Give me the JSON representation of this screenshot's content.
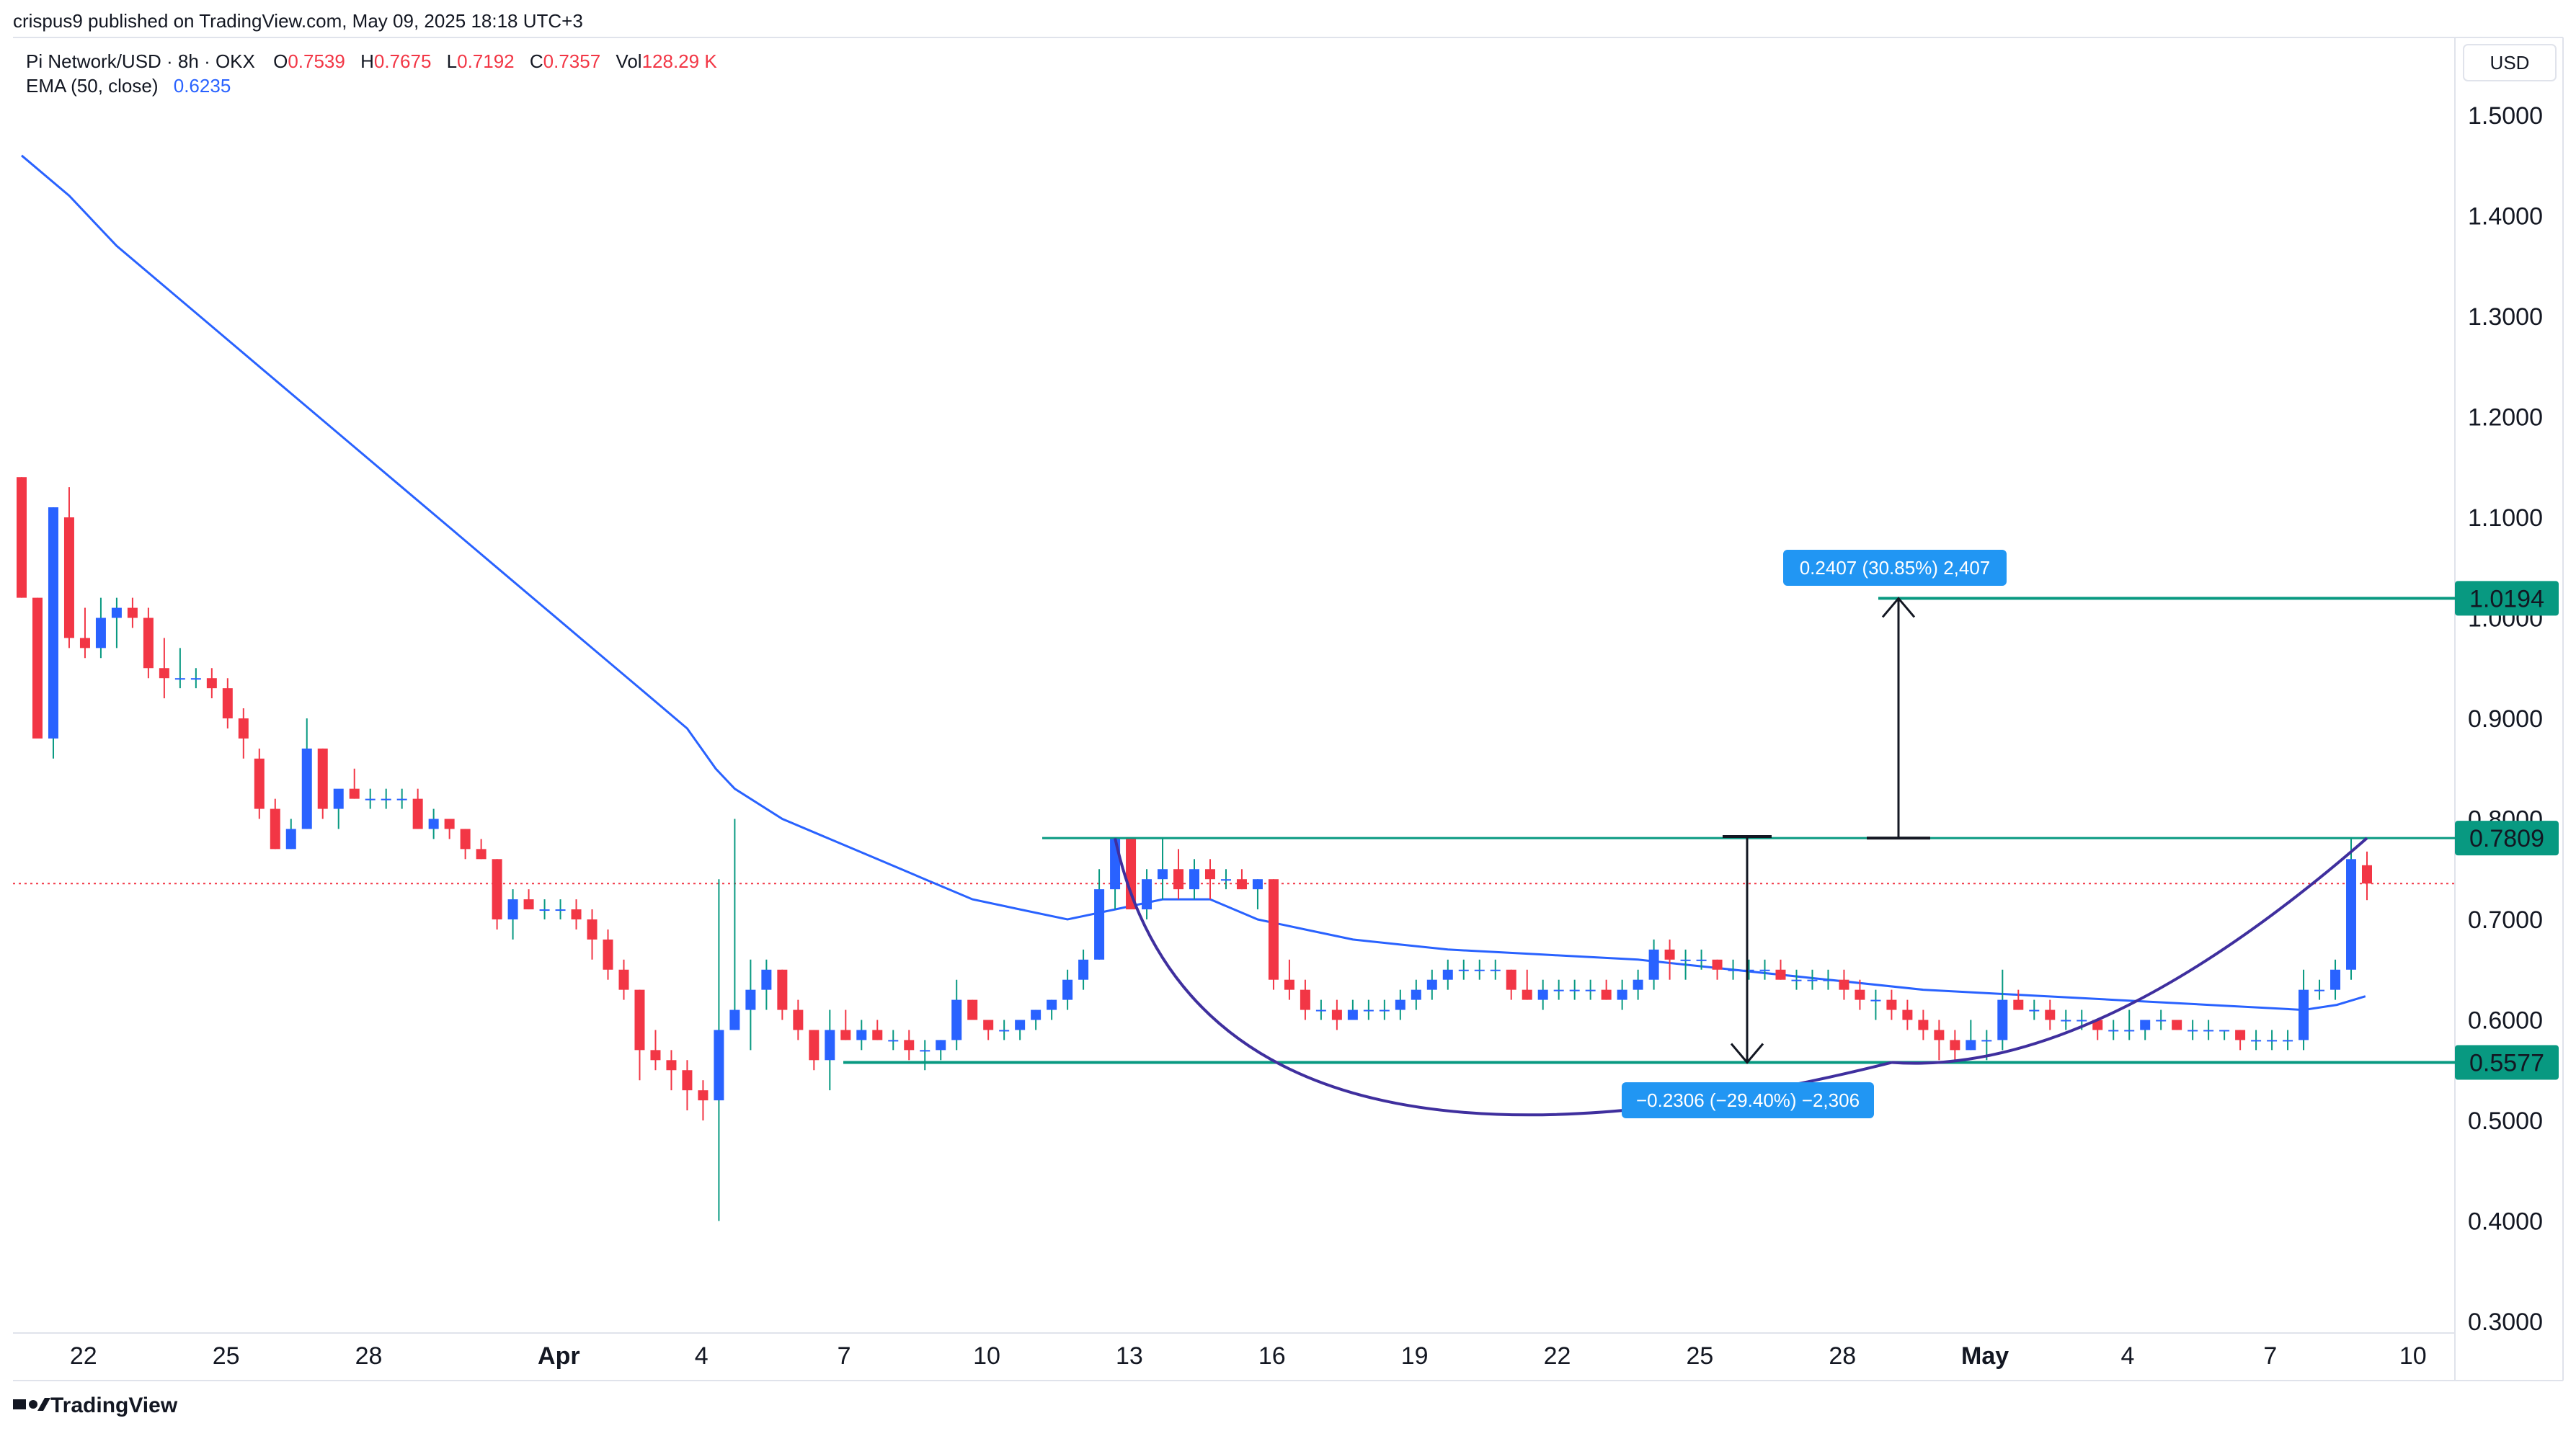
{
  "header": {
    "published": "crispus9 published on TradingView.com, May 09, 2025 18:18 UTC+3"
  },
  "legend": {
    "symbol": "Pi Network/USD · 8h · OKX",
    "o_label": "O",
    "o_value": "0.7539",
    "h_label": "H",
    "h_value": "0.7675",
    "l_label": "L",
    "l_value": "0.7192",
    "c_label": "C",
    "c_value": "0.7357",
    "vol_label": "Vol",
    "vol_value": "128.29 K",
    "ema_label": "EMA (50, close)",
    "ema_value": "0.6235"
  },
  "currency_button": "USD",
  "branding": "TradingView",
  "colors": {
    "up": "#2962ff",
    "down": "#f23645",
    "ema": "#2962ff",
    "level": "#089981",
    "curve": "#3f2f9e",
    "measure_bg": "#2196f3",
    "price_line": "#f23645"
  },
  "chart_data": {
    "type": "candlestick",
    "title": "Pi Network/USD · 8h · OKX",
    "ylim": [
      0.3,
      1.55
    ],
    "y_ticks": [
      "1.5000",
      "1.4000",
      "1.3000",
      "1.2000",
      "1.1000",
      "1.0000",
      "0.9000",
      "0.8000",
      "0.7000",
      "0.6000",
      "0.5000",
      "0.4000",
      "0.3000"
    ],
    "x_ticks": [
      {
        "t": 1.3,
        "label": "22",
        "bold": false
      },
      {
        "t": 4.3,
        "label": "25",
        "bold": false
      },
      {
        "t": 7.3,
        "label": "28",
        "bold": false
      },
      {
        "t": 11.3,
        "label": "Apr",
        "bold": true
      },
      {
        "t": 14.3,
        "label": "4",
        "bold": false
      },
      {
        "t": 17.3,
        "label": "7",
        "bold": false
      },
      {
        "t": 20.3,
        "label": "10",
        "bold": false
      },
      {
        "t": 23.3,
        "label": "13",
        "bold": false
      },
      {
        "t": 26.3,
        "label": "16",
        "bold": false
      },
      {
        "t": 29.3,
        "label": "19",
        "bold": false
      },
      {
        "t": 32.3,
        "label": "22",
        "bold": false
      },
      {
        "t": 35.3,
        "label": "25",
        "bold": false
      },
      {
        "t": 38.3,
        "label": "28",
        "bold": false
      },
      {
        "t": 41.3,
        "label": "May",
        "bold": true
      },
      {
        "t": 44.3,
        "label": "4",
        "bold": false
      },
      {
        "t": 47.3,
        "label": "7",
        "bold": false
      },
      {
        "t": 50.3,
        "label": "10",
        "bold": false
      }
    ],
    "candles": [
      [
        1.14,
        1.14,
        1.02,
        1.02
      ],
      [
        1.02,
        1.02,
        0.89,
        0.88
      ],
      [
        0.88,
        1.11,
        0.86,
        1.11
      ],
      [
        1.1,
        1.13,
        0.97,
        0.98
      ],
      [
        0.98,
        1.01,
        0.96,
        0.97
      ],
      [
        0.97,
        1.02,
        0.96,
        1.0
      ],
      [
        1.0,
        1.02,
        0.97,
        1.01
      ],
      [
        1.01,
        1.02,
        0.99,
        1.0
      ],
      [
        1.0,
        1.01,
        0.94,
        0.95
      ],
      [
        0.95,
        0.98,
        0.92,
        0.94
      ],
      [
        0.94,
        0.97,
        0.93,
        0.94
      ],
      [
        0.94,
        0.95,
        0.93,
        0.94
      ],
      [
        0.94,
        0.95,
        0.92,
        0.93
      ],
      [
        0.93,
        0.94,
        0.89,
        0.9
      ],
      [
        0.9,
        0.91,
        0.86,
        0.88
      ],
      [
        0.86,
        0.87,
        0.8,
        0.81
      ],
      [
        0.81,
        0.82,
        0.77,
        0.77
      ],
      [
        0.77,
        0.8,
        0.77,
        0.79
      ],
      [
        0.79,
        0.9,
        0.79,
        0.87
      ],
      [
        0.87,
        0.87,
        0.8,
        0.81
      ],
      [
        0.81,
        0.82,
        0.79,
        0.83
      ],
      [
        0.83,
        0.85,
        0.82,
        0.82
      ],
      [
        0.82,
        0.83,
        0.81,
        0.82
      ],
      [
        0.82,
        0.83,
        0.81,
        0.82
      ],
      [
        0.82,
        0.83,
        0.81,
        0.82
      ],
      [
        0.82,
        0.83,
        0.79,
        0.79
      ],
      [
        0.79,
        0.81,
        0.78,
        0.8
      ],
      [
        0.8,
        0.8,
        0.78,
        0.79
      ],
      [
        0.79,
        0.79,
        0.76,
        0.77
      ],
      [
        0.77,
        0.78,
        0.76,
        0.76
      ],
      [
        0.76,
        0.76,
        0.69,
        0.7
      ],
      [
        0.7,
        0.73,
        0.68,
        0.72
      ],
      [
        0.72,
        0.73,
        0.71,
        0.71
      ],
      [
        0.71,
        0.72,
        0.7,
        0.71
      ],
      [
        0.71,
        0.72,
        0.7,
        0.71
      ],
      [
        0.71,
        0.72,
        0.69,
        0.7
      ],
      [
        0.7,
        0.71,
        0.66,
        0.68
      ],
      [
        0.68,
        0.69,
        0.64,
        0.65
      ],
      [
        0.65,
        0.66,
        0.62,
        0.63
      ],
      [
        0.63,
        0.63,
        0.54,
        0.57
      ],
      [
        0.57,
        0.59,
        0.55,
        0.56
      ],
      [
        0.56,
        0.57,
        0.53,
        0.55
      ],
      [
        0.55,
        0.56,
        0.51,
        0.53
      ],
      [
        0.53,
        0.54,
        0.5,
        0.52
      ],
      [
        0.52,
        0.74,
        0.4,
        0.59
      ],
      [
        0.59,
        0.8,
        0.59,
        0.61
      ],
      [
        0.61,
        0.66,
        0.57,
        0.63
      ],
      [
        0.63,
        0.66,
        0.61,
        0.65
      ],
      [
        0.65,
        0.65,
        0.6,
        0.61
      ],
      [
        0.61,
        0.62,
        0.58,
        0.59
      ],
      [
        0.59,
        0.59,
        0.55,
        0.56
      ],
      [
        0.56,
        0.61,
        0.53,
        0.59
      ],
      [
        0.59,
        0.61,
        0.58,
        0.58
      ],
      [
        0.58,
        0.6,
        0.57,
        0.59
      ],
      [
        0.59,
        0.6,
        0.58,
        0.58
      ],
      [
        0.58,
        0.59,
        0.57,
        0.58
      ],
      [
        0.58,
        0.59,
        0.56,
        0.57
      ],
      [
        0.57,
        0.58,
        0.55,
        0.57
      ],
      [
        0.57,
        0.58,
        0.56,
        0.58
      ],
      [
        0.58,
        0.64,
        0.57,
        0.62
      ],
      [
        0.62,
        0.62,
        0.6,
        0.6
      ],
      [
        0.6,
        0.6,
        0.58,
        0.59
      ],
      [
        0.59,
        0.6,
        0.58,
        0.59
      ],
      [
        0.59,
        0.6,
        0.58,
        0.6
      ],
      [
        0.6,
        0.61,
        0.59,
        0.61
      ],
      [
        0.61,
        0.62,
        0.6,
        0.62
      ],
      [
        0.62,
        0.65,
        0.61,
        0.64
      ],
      [
        0.64,
        0.67,
        0.63,
        0.66
      ],
      [
        0.66,
        0.75,
        0.66,
        0.73
      ],
      [
        0.73,
        0.78,
        0.71,
        0.78
      ],
      [
        0.78,
        0.78,
        0.71,
        0.71
      ],
      [
        0.71,
        0.75,
        0.7,
        0.74
      ],
      [
        0.74,
        0.78,
        0.72,
        0.75
      ],
      [
        0.75,
        0.77,
        0.72,
        0.73
      ],
      [
        0.73,
        0.76,
        0.72,
        0.75
      ],
      [
        0.75,
        0.76,
        0.72,
        0.74
      ],
      [
        0.74,
        0.75,
        0.73,
        0.74
      ],
      [
        0.74,
        0.75,
        0.73,
        0.73
      ],
      [
        0.73,
        0.74,
        0.71,
        0.74
      ],
      [
        0.74,
        0.74,
        0.63,
        0.64
      ],
      [
        0.64,
        0.66,
        0.62,
        0.63
      ],
      [
        0.63,
        0.64,
        0.6,
        0.61
      ],
      [
        0.61,
        0.62,
        0.6,
        0.61
      ],
      [
        0.61,
        0.62,
        0.59,
        0.6
      ],
      [
        0.6,
        0.62,
        0.6,
        0.61
      ],
      [
        0.61,
        0.62,
        0.6,
        0.61
      ],
      [
        0.61,
        0.62,
        0.6,
        0.61
      ],
      [
        0.61,
        0.63,
        0.6,
        0.62
      ],
      [
        0.62,
        0.64,
        0.61,
        0.63
      ],
      [
        0.63,
        0.65,
        0.62,
        0.64
      ],
      [
        0.64,
        0.66,
        0.63,
        0.65
      ],
      [
        0.65,
        0.66,
        0.64,
        0.65
      ],
      [
        0.65,
        0.66,
        0.64,
        0.65
      ],
      [
        0.65,
        0.66,
        0.64,
        0.65
      ],
      [
        0.65,
        0.65,
        0.62,
        0.63
      ],
      [
        0.63,
        0.65,
        0.62,
        0.62
      ],
      [
        0.62,
        0.64,
        0.61,
        0.63
      ],
      [
        0.63,
        0.64,
        0.62,
        0.63
      ],
      [
        0.63,
        0.64,
        0.62,
        0.63
      ],
      [
        0.63,
        0.64,
        0.62,
        0.63
      ],
      [
        0.63,
        0.64,
        0.62,
        0.62
      ],
      [
        0.62,
        0.64,
        0.61,
        0.63
      ],
      [
        0.63,
        0.65,
        0.62,
        0.64
      ],
      [
        0.64,
        0.68,
        0.63,
        0.67
      ],
      [
        0.67,
        0.68,
        0.64,
        0.66
      ],
      [
        0.66,
        0.67,
        0.64,
        0.66
      ],
      [
        0.66,
        0.67,
        0.65,
        0.66
      ],
      [
        0.66,
        0.66,
        0.64,
        0.65
      ],
      [
        0.65,
        0.66,
        0.64,
        0.65
      ],
      [
        0.65,
        0.66,
        0.64,
        0.65
      ],
      [
        0.65,
        0.66,
        0.64,
        0.65
      ],
      [
        0.65,
        0.66,
        0.64,
        0.64
      ],
      [
        0.64,
        0.65,
        0.63,
        0.64
      ],
      [
        0.64,
        0.65,
        0.63,
        0.64
      ],
      [
        0.64,
        0.65,
        0.63,
        0.64
      ],
      [
        0.64,
        0.65,
        0.62,
        0.63
      ],
      [
        0.63,
        0.64,
        0.61,
        0.62
      ],
      [
        0.62,
        0.63,
        0.6,
        0.62
      ],
      [
        0.62,
        0.63,
        0.6,
        0.61
      ],
      [
        0.61,
        0.62,
        0.59,
        0.6
      ],
      [
        0.6,
        0.61,
        0.58,
        0.59
      ],
      [
        0.59,
        0.6,
        0.56,
        0.58
      ],
      [
        0.58,
        0.59,
        0.56,
        0.57
      ],
      [
        0.57,
        0.6,
        0.57,
        0.58
      ],
      [
        0.58,
        0.59,
        0.56,
        0.58
      ],
      [
        0.58,
        0.65,
        0.57,
        0.62
      ],
      [
        0.62,
        0.63,
        0.61,
        0.61
      ],
      [
        0.61,
        0.62,
        0.6,
        0.61
      ],
      [
        0.61,
        0.62,
        0.59,
        0.6
      ],
      [
        0.6,
        0.61,
        0.59,
        0.6
      ],
      [
        0.6,
        0.61,
        0.59,
        0.6
      ],
      [
        0.6,
        0.6,
        0.58,
        0.59
      ],
      [
        0.59,
        0.6,
        0.58,
        0.59
      ],
      [
        0.59,
        0.61,
        0.58,
        0.59
      ],
      [
        0.59,
        0.6,
        0.58,
        0.6
      ],
      [
        0.6,
        0.61,
        0.59,
        0.6
      ],
      [
        0.6,
        0.6,
        0.59,
        0.59
      ],
      [
        0.59,
        0.6,
        0.58,
        0.59
      ],
      [
        0.59,
        0.6,
        0.58,
        0.59
      ],
      [
        0.59,
        0.59,
        0.58,
        0.59
      ],
      [
        0.59,
        0.59,
        0.57,
        0.58
      ],
      [
        0.58,
        0.59,
        0.57,
        0.58
      ],
      [
        0.58,
        0.59,
        0.57,
        0.58
      ],
      [
        0.58,
        0.59,
        0.57,
        0.58
      ],
      [
        0.58,
        0.65,
        0.57,
        0.63
      ],
      [
        0.63,
        0.64,
        0.62,
        0.63
      ],
      [
        0.63,
        0.66,
        0.62,
        0.65
      ],
      [
        0.65,
        0.78,
        0.64,
        0.76
      ],
      [
        0.7539,
        0.7675,
        0.7192,
        0.7357
      ]
    ],
    "ema": [
      [
        0.0,
        1.46
      ],
      [
        1.0,
        1.42
      ],
      [
        2.0,
        1.37
      ],
      [
        3.0,
        1.33
      ],
      [
        4.0,
        1.29
      ],
      [
        5.0,
        1.25
      ],
      [
        6.0,
        1.21
      ],
      [
        7.0,
        1.17
      ],
      [
        8.0,
        1.13
      ],
      [
        9.0,
        1.09
      ],
      [
        10.0,
        1.05
      ],
      [
        11.0,
        1.01
      ],
      [
        12.0,
        0.97
      ],
      [
        13.0,
        0.93
      ],
      [
        14.0,
        0.89
      ],
      [
        14.6,
        0.85
      ],
      [
        15.0,
        0.83
      ],
      [
        16.0,
        0.8
      ],
      [
        17.0,
        0.78
      ],
      [
        18.0,
        0.76
      ],
      [
        19.0,
        0.74
      ],
      [
        20.0,
        0.72
      ],
      [
        21.0,
        0.71
      ],
      [
        22.0,
        0.7
      ],
      [
        23.0,
        0.71
      ],
      [
        24.0,
        0.72
      ],
      [
        25.0,
        0.72
      ],
      [
        26.0,
        0.7
      ],
      [
        27.0,
        0.69
      ],
      [
        28.0,
        0.68
      ],
      [
        29.0,
        0.675
      ],
      [
        30.0,
        0.67
      ],
      [
        32.0,
        0.665
      ],
      [
        34.0,
        0.66
      ],
      [
        36.0,
        0.65
      ],
      [
        38.0,
        0.64
      ],
      [
        40.0,
        0.63
      ],
      [
        42.0,
        0.625
      ],
      [
        44.0,
        0.62
      ],
      [
        46.0,
        0.615
      ],
      [
        48.0,
        0.61
      ],
      [
        48.7,
        0.615
      ],
      [
        49.3,
        0.6235
      ]
    ],
    "resistance": 0.7809,
    "support": 0.5577,
    "target": 1.0194,
    "last_price": 0.7357,
    "measure_up": "0.2407 (30.85%) 2,407",
    "measure_down": "−0.2306 (−29.40%) −2,306",
    "level_labels": {
      "target": "1.0194",
      "resistance": "0.7809",
      "support": "0.5577"
    }
  }
}
